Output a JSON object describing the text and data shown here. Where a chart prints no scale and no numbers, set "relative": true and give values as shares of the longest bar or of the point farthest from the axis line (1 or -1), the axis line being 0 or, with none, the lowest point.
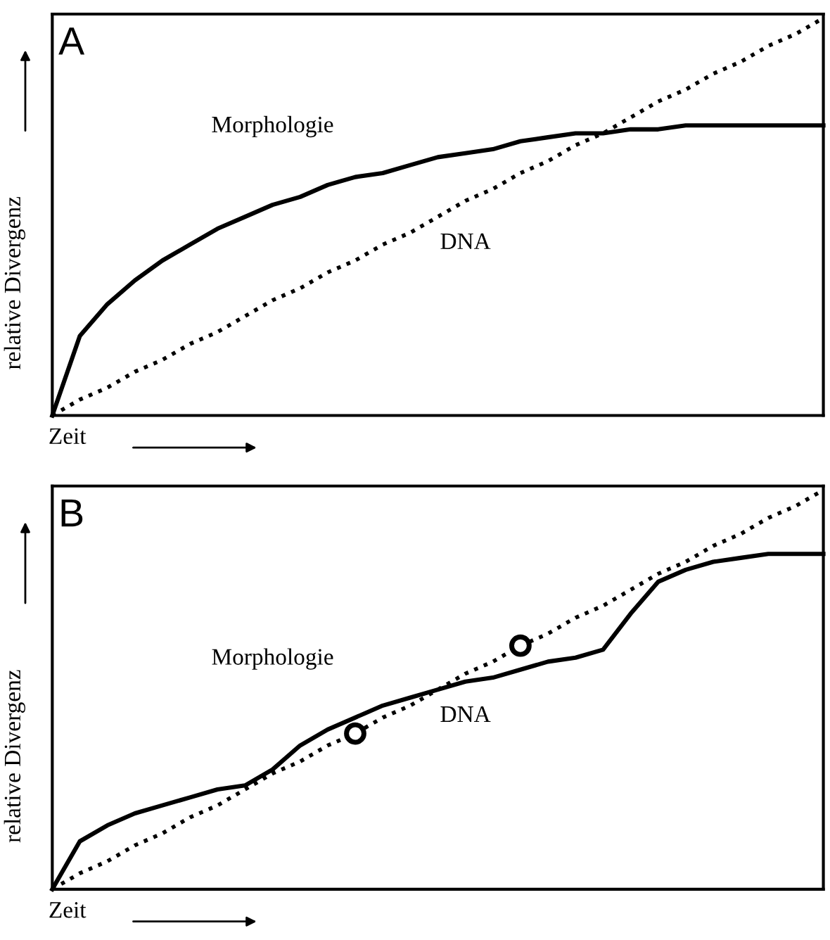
{
  "chart_data": [
    {
      "type": "line",
      "relative": true,
      "tick_labels": false,
      "legend": false,
      "xlabel": "Zeit",
      "ylabel": "relative Divergenz",
      "annotations": [
        "A"
      ],
      "categories": [
        null,
        null,
        null,
        null,
        null,
        null,
        null,
        null,
        null,
        null,
        null,
        null,
        null,
        null,
        null,
        null,
        null,
        null,
        null,
        null,
        null,
        null,
        null,
        null,
        null,
        null,
        null,
        null,
        null
      ],
      "series": [
        {
          "name": "Morphologie",
          "color": "#000000",
          "line_style": "solid",
          "values": [
            0,
            0.2,
            0.28,
            0.34,
            0.39,
            0.43,
            0.47,
            0.5,
            0.53,
            0.55,
            0.58,
            0.6,
            0.61,
            0.63,
            0.65,
            0.66,
            0.67,
            0.69,
            0.7,
            0.71,
            0.71,
            0.72,
            0.72,
            0.73,
            0.73,
            0.73,
            0.73,
            0.73,
            0.73
          ]
        },
        {
          "name": "DNA",
          "color": "#000000",
          "line_style": "dotted",
          "values": [
            0,
            0.04,
            0.07,
            0.11,
            0.14,
            0.18,
            0.21,
            0.25,
            0.29,
            0.32,
            0.36,
            0.39,
            0.43,
            0.46,
            0.5,
            0.54,
            0.57,
            0.61,
            0.64,
            0.68,
            0.71,
            0.75,
            0.79,
            0.82,
            0.86,
            0.89,
            0.93,
            0.96,
            1
          ]
        }
      ]
    },
    {
      "type": "line",
      "relative": true,
      "tick_labels": false,
      "legend": false,
      "xlabel": "Zeit",
      "ylabel": "relative Divergenz",
      "annotations": [
        "B"
      ],
      "categories": [
        null,
        null,
        null,
        null,
        null,
        null,
        null,
        null,
        null,
        null,
        null,
        null,
        null,
        null,
        null,
        null,
        null,
        null,
        null,
        null,
        null,
        null,
        null,
        null,
        null,
        null,
        null,
        null,
        null
      ],
      "series": [
        {
          "name": "Morphologie",
          "color": "#000000",
          "line_style": "solid",
          "values": [
            0,
            0.12,
            0.16,
            0.19,
            0.21,
            0.23,
            0.25,
            0.26,
            0.3,
            0.36,
            0.4,
            0.43,
            0.46,
            0.48,
            0.5,
            0.52,
            0.53,
            0.55,
            0.57,
            0.58,
            0.6,
            0.69,
            0.77,
            0.8,
            0.82,
            0.83,
            0.84,
            0.84,
            0.84
          ]
        },
        {
          "name": "DNA",
          "color": "#000000",
          "line_style": "dotted",
          "values": [
            0,
            0.04,
            0.07,
            0.11,
            0.14,
            0.18,
            0.21,
            0.25,
            0.29,
            0.32,
            0.36,
            0.39,
            0.43,
            0.46,
            0.5,
            0.54,
            0.57,
            0.61,
            0.64,
            0.68,
            0.71,
            0.75,
            0.79,
            0.82,
            0.86,
            0.89,
            0.93,
            0.96,
            1
          ]
        },
        {
          "type": "scatter",
          "color": "#000000",
          "values": [
            null,
            null,
            null,
            null,
            null,
            null,
            null,
            null,
            null,
            null,
            null,
            0.39,
            null,
            null,
            null,
            null,
            null,
            0.61,
            null,
            null,
            null,
            null,
            null,
            null,
            null,
            null,
            null,
            null,
            null
          ]
        }
      ]
    }
  ]
}
